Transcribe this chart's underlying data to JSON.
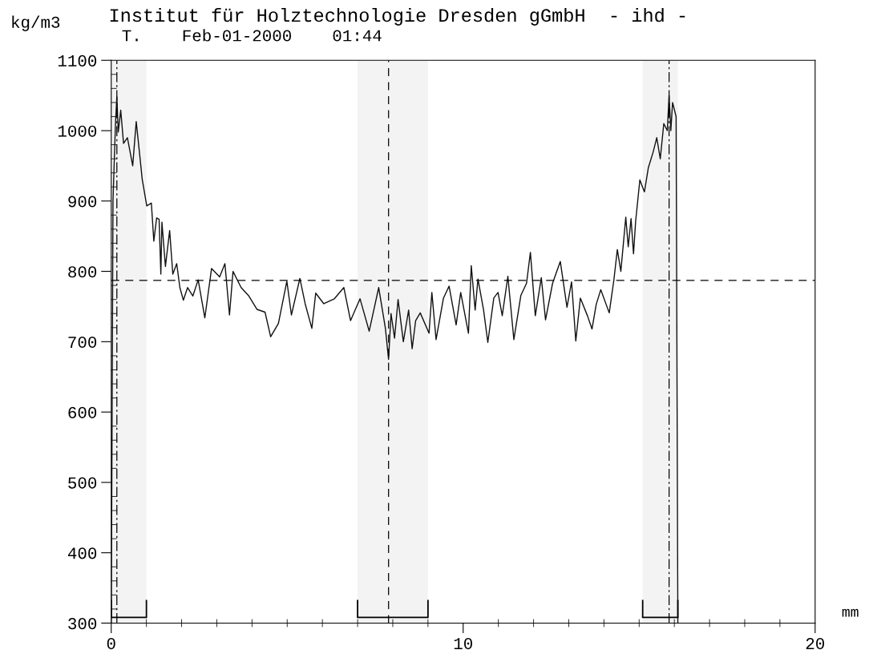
{
  "chart_data": {
    "type": "line",
    "title": "Institut für Holztechnologie Dresden gGmbH  - ihd -",
    "subtitle": "T.    Feb-01-2000    01:44",
    "ylabel": "kg/m3",
    "xlabel": "mm",
    "x": [
      0.0,
      0.05,
      0.12,
      0.16,
      0.2,
      0.27,
      0.35,
      0.46,
      0.61,
      0.71,
      0.8,
      0.88,
      1.01,
      1.14,
      1.21,
      1.29,
      1.36,
      1.41,
      1.44,
      1.54,
      1.66,
      1.75,
      1.86,
      1.95,
      2.05,
      2.17,
      2.32,
      2.47,
      2.66,
      2.85,
      3.08,
      3.23,
      3.36,
      3.46,
      3.69,
      3.91,
      4.14,
      4.37,
      4.53,
      4.75,
      4.99,
      5.12,
      5.36,
      5.51,
      5.7,
      5.81,
      6.04,
      6.34,
      6.61,
      6.8,
      7.07,
      7.33,
      7.6,
      7.79,
      7.88,
      7.95,
      8.05,
      8.15,
      8.3,
      8.45,
      8.55,
      8.65,
      8.78,
      9.03,
      9.11,
      9.23,
      9.44,
      9.6,
      9.8,
      9.93,
      10.15,
      10.23,
      10.34,
      10.42,
      10.58,
      10.7,
      10.87,
      10.99,
      11.11,
      11.27,
      11.44,
      11.64,
      11.8,
      11.91,
      12.05,
      12.22,
      12.34,
      12.54,
      12.66,
      12.76,
      12.95,
      13.08,
      13.2,
      13.33,
      13.53,
      13.66,
      13.78,
      13.91,
      14.15,
      14.28,
      14.38,
      14.48,
      14.62,
      14.69,
      14.77,
      14.84,
      14.9,
      15.02,
      15.15,
      15.26,
      15.4,
      15.5,
      15.6,
      15.7,
      15.8,
      15.85,
      15.9,
      15.95,
      16.05,
      16.1
    ],
    "series": [
      {
        "color": "#111111",
        "values": [
          300,
          900,
          1009,
          1048,
          998,
          1029,
          982,
          990,
          950,
          1013,
          970,
          931,
          893,
          897,
          843,
          876,
          874,
          796,
          870,
          807,
          858,
          796,
          811,
          777,
          759,
          777,
          765,
          788,
          734,
          804,
          792,
          811,
          738,
          800,
          777,
          765,
          746,
          742,
          707,
          726,
          786,
          738,
          790,
          754,
          719,
          769,
          754,
          761,
          777,
          730,
          761,
          715,
          777,
          719,
          675,
          740,
          705,
          760,
          700,
          745,
          690,
          730,
          741,
          712,
          770,
          703,
          762,
          779,
          724,
          770,
          712,
          808,
          745,
          789,
          745,
          699,
          762,
          770,
          737,
          793,
          703,
          766,
          783,
          827,
          737,
          791,
          731,
          783,
          800,
          814,
          749,
          785,
          701,
          762,
          737,
          718,
          753,
          774,
          741,
          787,
          831,
          800,
          877,
          835,
          875,
          825,
          871,
          930,
          913,
          947,
          970,
          990,
          960,
          1010,
          1000,
          1050,
          1000,
          1040,
          1020,
          300
        ]
      }
    ],
    "xlim": [
      0,
      20
    ],
    "xticks": [
      0,
      10,
      20
    ],
    "ylim": [
      300,
      1100
    ],
    "yticks": [
      300,
      400,
      500,
      600,
      700,
      800,
      900,
      1000,
      1100
    ],
    "ref_lines": [
      {
        "axis": "y",
        "value": 787,
        "line_style": "dashed"
      },
      {
        "axis": "x",
        "value": 0.16,
        "line_style": "dashdot"
      },
      {
        "axis": "x",
        "value": 7.88,
        "line_style": "dashed"
      },
      {
        "axis": "x",
        "value": 15.85,
        "line_style": "dashdot"
      }
    ],
    "bands": [
      {
        "axis": "x",
        "from": 0,
        "to": 1.0
      },
      {
        "axis": "x",
        "from": 7.0,
        "to": 9.0
      },
      {
        "axis": "x",
        "from": 15.1,
        "to": 16.1
      }
    ],
    "grid": false,
    "legend": false,
    "line_style": "solid",
    "marker": "none"
  }
}
